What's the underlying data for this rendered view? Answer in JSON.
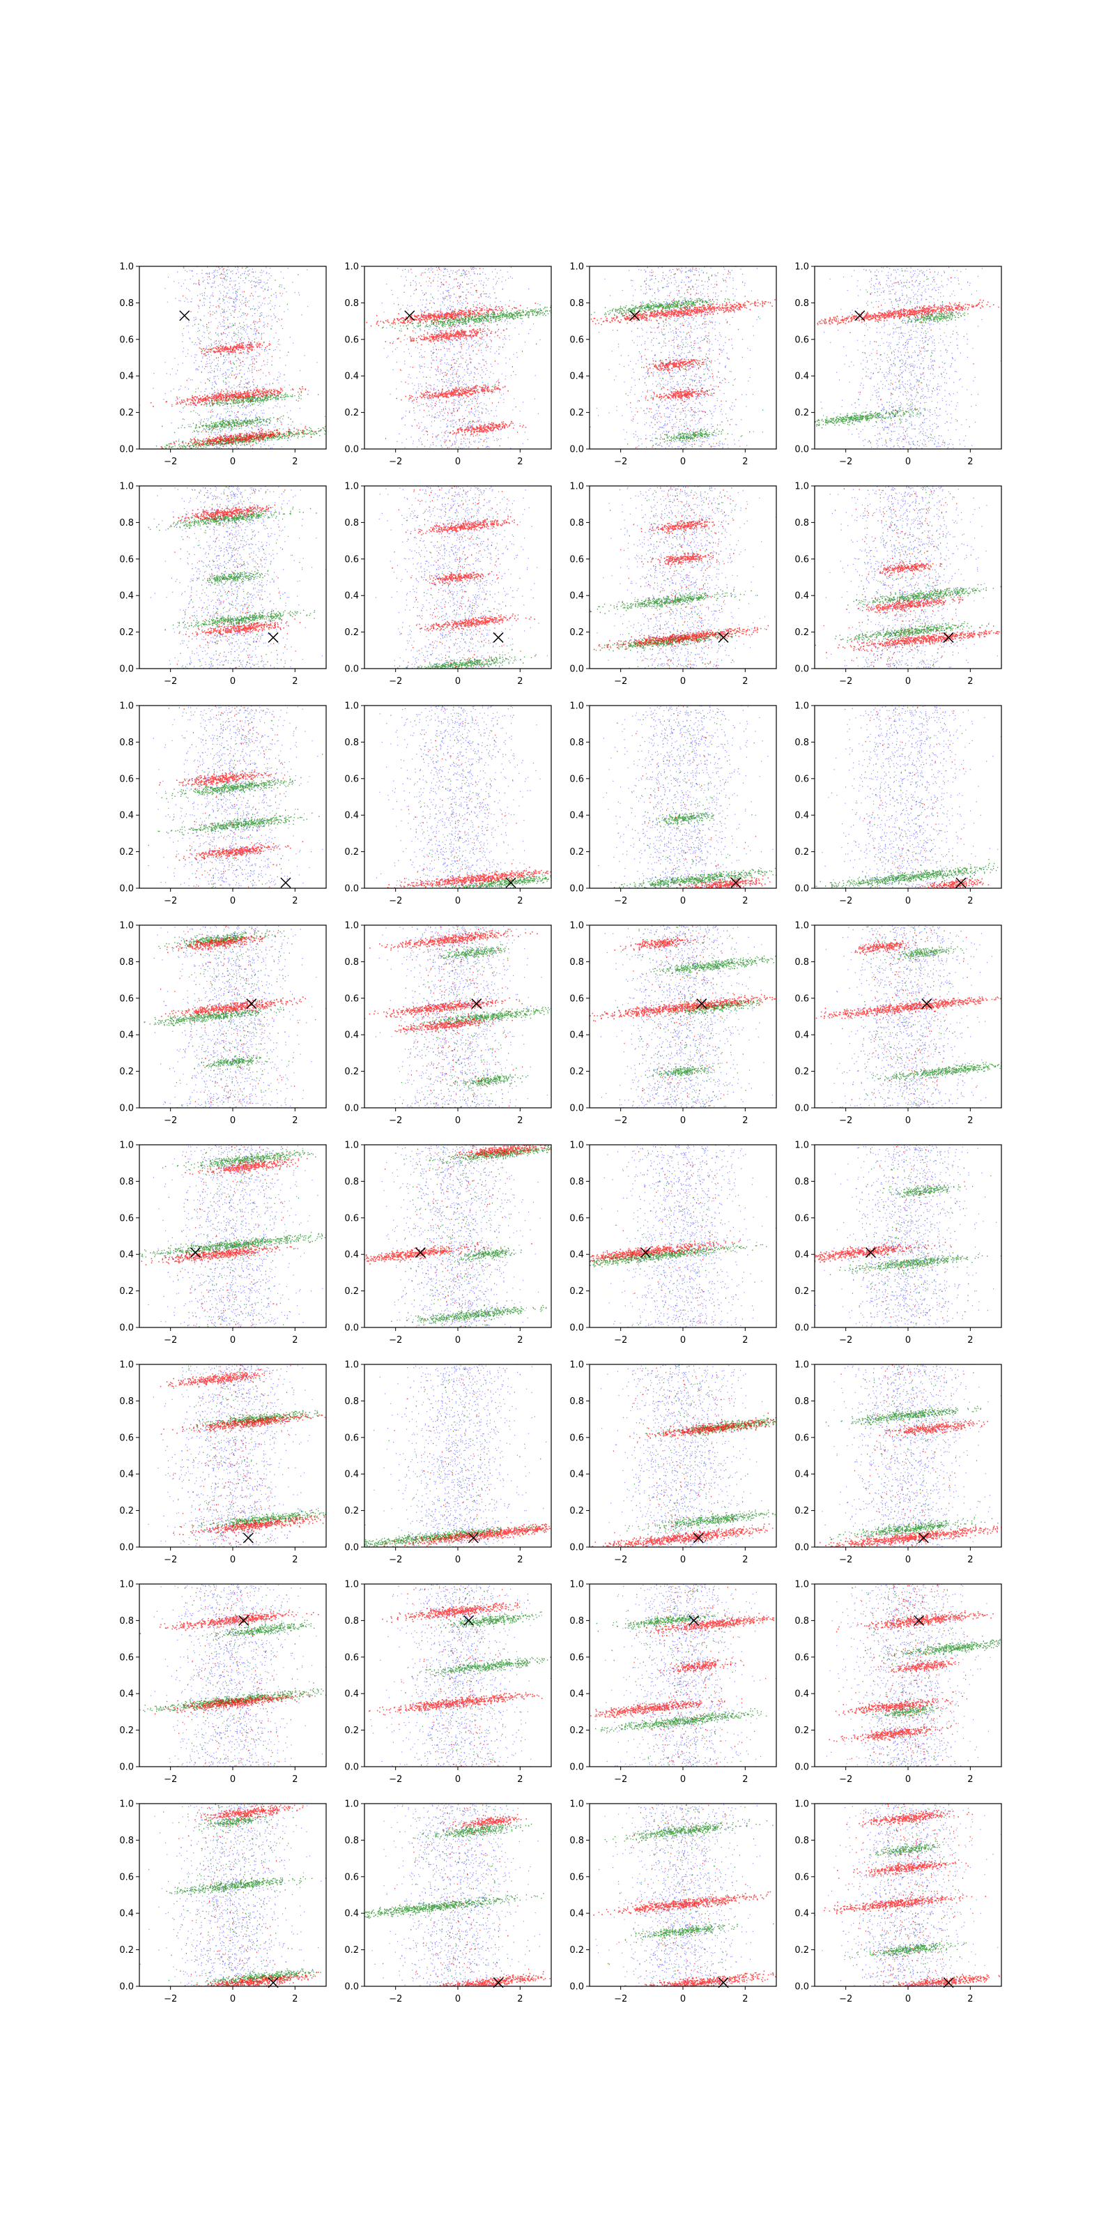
{
  "figure": {
    "rows": 8,
    "cols": 4,
    "description_colors": {
      "background": "#0000ff",
      "series_green": "#008000",
      "series_red": "#ff0000",
      "marker": "#000000",
      "axes": "#000000"
    }
  },
  "chart_data": {
    "type": "scatter",
    "grid": false,
    "xlim": [
      -3,
      3
    ],
    "ylim": [
      0,
      1
    ],
    "x_ticks": [
      -2,
      0,
      2
    ],
    "x_tick_labels": [
      "−2",
      "0",
      "2"
    ],
    "y_ticks": [
      0.0,
      0.2,
      0.4,
      0.6,
      0.8,
      1.0
    ],
    "y_tick_labels": [
      "0.0",
      "0.2",
      "0.4",
      "0.6",
      "0.8",
      "1.0"
    ],
    "series_names": [
      "background",
      "green",
      "red",
      "marker"
    ],
    "marker_symbol": "×",
    "rows": [
      {
        "marker": [
          -1.55,
          0.73
        ],
        "panels": [
          {
            "green": [
              [
                0.25,
                0.05,
                3.0
              ],
              [
                0.0,
                0.14,
                1.5
              ],
              [
                0.5,
                0.27,
                1.5
              ]
            ],
            "red": [
              [
                0.0,
                0.29,
                2.0
              ],
              [
                0.2,
                0.06,
                2.0
              ],
              [
                0.0,
                0.55,
                1.0
              ]
            ]
          },
          {
            "green": [
              [
                1.0,
                0.72,
                3.0
              ]
            ],
            "red": [
              [
                -0.5,
                0.73,
                2.0
              ],
              [
                -0.3,
                0.62,
                1.5
              ],
              [
                0.0,
                0.31,
                1.5
              ],
              [
                0.8,
                0.11,
                1.0
              ]
            ]
          },
          {
            "green": [
              [
                -0.7,
                0.78,
                2.0
              ],
              [
                0.2,
                0.07,
                1.0
              ]
            ],
            "red": [
              [
                0.0,
                0.75,
                3.0
              ],
              [
                -0.3,
                0.46,
                1.0
              ],
              [
                0.0,
                0.3,
                1.0
              ]
            ]
          },
          {
            "green": [
              [
                -1.6,
                0.17,
                2.0
              ],
              [
                0.8,
                0.72,
                1.0
              ]
            ],
            "red": [
              [
                -0.3,
                0.74,
                3.0
              ]
            ]
          }
        ]
      },
      {
        "marker": [
          1.3,
          0.17
        ],
        "panels": [
          {
            "green": [
              [
                -0.2,
                0.82,
                2.0
              ],
              [
                0.3,
                0.27,
                2.0
              ],
              [
                0.0,
                0.5,
                1.0
              ]
            ],
            "red": [
              [
                -0.3,
                0.85,
                1.5
              ],
              [
                0.3,
                0.22,
                1.5
              ]
            ]
          },
          {
            "green": [
              [
                0.0,
                0.02,
                2.0
              ]
            ],
            "red": [
              [
                0.3,
                0.78,
                1.5
              ],
              [
                0.4,
                0.25,
                1.5
              ],
              [
                0.0,
                0.5,
                1.0
              ]
            ]
          },
          {
            "green": [
              [
                -0.5,
                0.37,
                2.0
              ],
              [
                -0.5,
                0.15,
                2.0
              ]
            ],
            "red": [
              [
                0.0,
                0.17,
                2.5
              ],
              [
                0.0,
                0.78,
                1.0
              ],
              [
                0.0,
                0.6,
                1.0
              ]
            ]
          },
          {
            "green": [
              [
                0.5,
                0.4,
                2.0
              ],
              [
                0.0,
                0.2,
                2.0
              ]
            ],
            "red": [
              [
                0.5,
                0.16,
                2.5
              ],
              [
                0.0,
                0.35,
                1.5
              ],
              [
                0.0,
                0.55,
                1.0
              ]
            ]
          }
        ]
      },
      {
        "marker": [
          1.7,
          0.03
        ],
        "panels": [
          {
            "green": [
              [
                0.0,
                0.55,
                2.0
              ],
              [
                0.3,
                0.35,
                2.0
              ]
            ],
            "red": [
              [
                -0.3,
                0.6,
                1.5
              ],
              [
                0.0,
                0.2,
                1.5
              ]
            ]
          },
          {
            "green": [
              [
                1.5,
                0.03,
                2.0
              ]
            ],
            "red": [
              [
                0.5,
                0.05,
                2.5
              ]
            ]
          },
          {
            "green": [
              [
                0.5,
                0.05,
                2.5
              ],
              [
                0.0,
                0.38,
                1.0
              ]
            ],
            "red": [
              [
                1.3,
                0.02,
                1.5
              ]
            ]
          },
          {
            "green": [
              [
                0.0,
                0.06,
                3.0
              ]
            ],
            "red": [
              [
                1.5,
                0.02,
                1.0
              ]
            ]
          }
        ]
      },
      {
        "marker": [
          0.6,
          0.57
        ],
        "panels": [
          {
            "green": [
              [
                -0.7,
                0.5,
                2.0
              ],
              [
                -0.5,
                0.92,
                1.5
              ],
              [
                0.0,
                0.25,
                1.0
              ]
            ],
            "red": [
              [
                0.0,
                0.55,
                2.0
              ],
              [
                -0.5,
                0.9,
                1.5
              ]
            ]
          },
          {
            "green": [
              [
                1.0,
                0.5,
                2.0
              ],
              [
                1.0,
                0.15,
                1.0
              ],
              [
                0.5,
                0.85,
                1.0
              ]
            ],
            "red": [
              [
                -0.2,
                0.92,
                2.0
              ],
              [
                -0.5,
                0.55,
                2.0
              ],
              [
                -0.5,
                0.45,
                1.5
              ]
            ]
          },
          {
            "green": [
              [
                1.0,
                0.78,
                2.0
              ],
              [
                1.0,
                0.55,
                1.5
              ],
              [
                0.0,
                0.2,
                1.0
              ]
            ],
            "red": [
              [
                0.0,
                0.55,
                3.0
              ],
              [
                -0.8,
                0.9,
                1.0
              ]
            ]
          },
          {
            "green": [
              [
                1.2,
                0.2,
                2.0
              ],
              [
                0.5,
                0.85,
                1.0
              ]
            ],
            "red": [
              [
                0.0,
                0.55,
                3.0
              ],
              [
                -0.8,
                0.88,
                1.0
              ]
            ]
          }
        ]
      },
      {
        "marker": [
          -1.2,
          0.41
        ],
        "panels": [
          {
            "green": [
              [
                0.0,
                0.45,
                3.0
              ],
              [
                0.5,
                0.92,
                2.0
              ]
            ],
            "red": [
              [
                -0.5,
                0.4,
                2.0
              ],
              [
                0.5,
                0.88,
                1.5
              ]
            ]
          },
          {
            "green": [
              [
                1.3,
                0.95,
                2.0
              ],
              [
                0.5,
                0.07,
                2.0
              ],
              [
                1.0,
                0.4,
                1.0
              ]
            ],
            "red": [
              [
                -1.5,
                0.4,
                2.0
              ],
              [
                1.5,
                0.97,
                1.5
              ]
            ]
          },
          {
            "green": [
              [
                -1.0,
                0.39,
                3.0
              ]
            ],
            "red": [
              [
                -1.3,
                0.41,
                2.5
              ]
            ]
          },
          {
            "green": [
              [
                0.0,
                0.35,
                2.0
              ],
              [
                0.5,
                0.75,
                1.0
              ]
            ],
            "red": [
              [
                -1.5,
                0.41,
                2.0
              ]
            ]
          }
        ]
      },
      {
        "marker": [
          0.5,
          0.05
        ],
        "panels": [
          {
            "green": [
              [
                0.8,
                0.7,
                2.0
              ],
              [
                1.0,
                0.15,
                2.0
              ]
            ],
            "red": [
              [
                0.5,
                0.68,
                2.0
              ],
              [
                0.8,
                0.12,
                2.0
              ],
              [
                -0.5,
                0.92,
                1.5
              ]
            ]
          },
          {
            "green": [
              [
                -1.0,
                0.05,
                3.0
              ]
            ],
            "red": [
              [
                1.0,
                0.07,
                3.0
              ]
            ]
          },
          {
            "green": [
              [
                1.5,
                0.66,
                2.0
              ],
              [
                1.0,
                0.15,
                2.0
              ]
            ],
            "red": [
              [
                1.0,
                0.65,
                2.0
              ],
              [
                0.0,
                0.05,
                3.0
              ]
            ]
          },
          {
            "green": [
              [
                0.0,
                0.72,
                2.0
              ],
              [
                0.0,
                0.1,
                2.0
              ]
            ],
            "red": [
              [
                0.8,
                0.65,
                1.5
              ],
              [
                0.0,
                0.05,
                3.0
              ]
            ]
          }
        ]
      },
      {
        "marker": [
          0.35,
          0.8
        ],
        "panels": [
          {
            "green": [
              [
                0.0,
                0.36,
                3.0
              ],
              [
                1.0,
                0.75,
                1.5
              ]
            ],
            "red": [
              [
                0.0,
                0.8,
                2.0
              ],
              [
                0.0,
                0.35,
                2.0
              ]
            ]
          },
          {
            "green": [
              [
                1.0,
                0.55,
                2.0
              ],
              [
                1.0,
                0.8,
                1.5
              ]
            ],
            "red": [
              [
                0.0,
                0.85,
                2.0
              ],
              [
                0.0,
                0.35,
                2.5
              ]
            ]
          },
          {
            "green": [
              [
                0.0,
                0.25,
                2.5
              ],
              [
                -0.5,
                0.8,
                1.5
              ]
            ],
            "red": [
              [
                1.0,
                0.78,
                2.0
              ],
              [
                -1.0,
                0.32,
                2.0
              ],
              [
                0.5,
                0.55,
                1.0
              ]
            ]
          },
          {
            "green": [
              [
                1.5,
                0.65,
                2.0
              ],
              [
                0.0,
                0.3,
                1.0
              ]
            ],
            "red": [
              [
                0.5,
                0.8,
                2.0
              ],
              [
                -0.5,
                0.33,
                1.5
              ],
              [
                -0.5,
                0.18,
                1.5
              ],
              [
                0.5,
                0.55,
                1.0
              ]
            ]
          }
        ]
      },
      {
        "marker": [
          1.3,
          0.02
        ],
        "panels": [
          {
            "green": [
              [
                0.0,
                0.55,
                2.0
              ],
              [
                1.0,
                0.05,
                2.0
              ],
              [
                0.0,
                0.9,
                1.0
              ]
            ],
            "red": [
              [
                0.5,
                0.95,
                1.5
              ],
              [
                0.5,
                0.02,
                2.0
              ]
            ]
          },
          {
            "green": [
              [
                -1.0,
                0.43,
                3.0
              ],
              [
                0.5,
                0.85,
                1.5
              ]
            ],
            "red": [
              [
                1.0,
                0.02,
                2.0
              ],
              [
                1.0,
                0.9,
                1.0
              ]
            ]
          },
          {
            "green": [
              [
                0.0,
                0.85,
                2.0
              ],
              [
                0.0,
                0.3,
                1.5
              ]
            ],
            "red": [
              [
                0.0,
                0.45,
                2.5
              ],
              [
                0.5,
                0.02,
                2.5
              ]
            ]
          },
          {
            "green": [
              [
                0.0,
                0.2,
                1.5
              ],
              [
                0.0,
                0.75,
                1.0
              ]
            ],
            "red": [
              [
                0.0,
                0.92,
                1.5
              ],
              [
                0.0,
                0.65,
                1.5
              ],
              [
                -0.5,
                0.45,
                2.0
              ],
              [
                1.0,
                0.02,
                2.0
              ]
            ]
          }
        ]
      }
    ]
  }
}
